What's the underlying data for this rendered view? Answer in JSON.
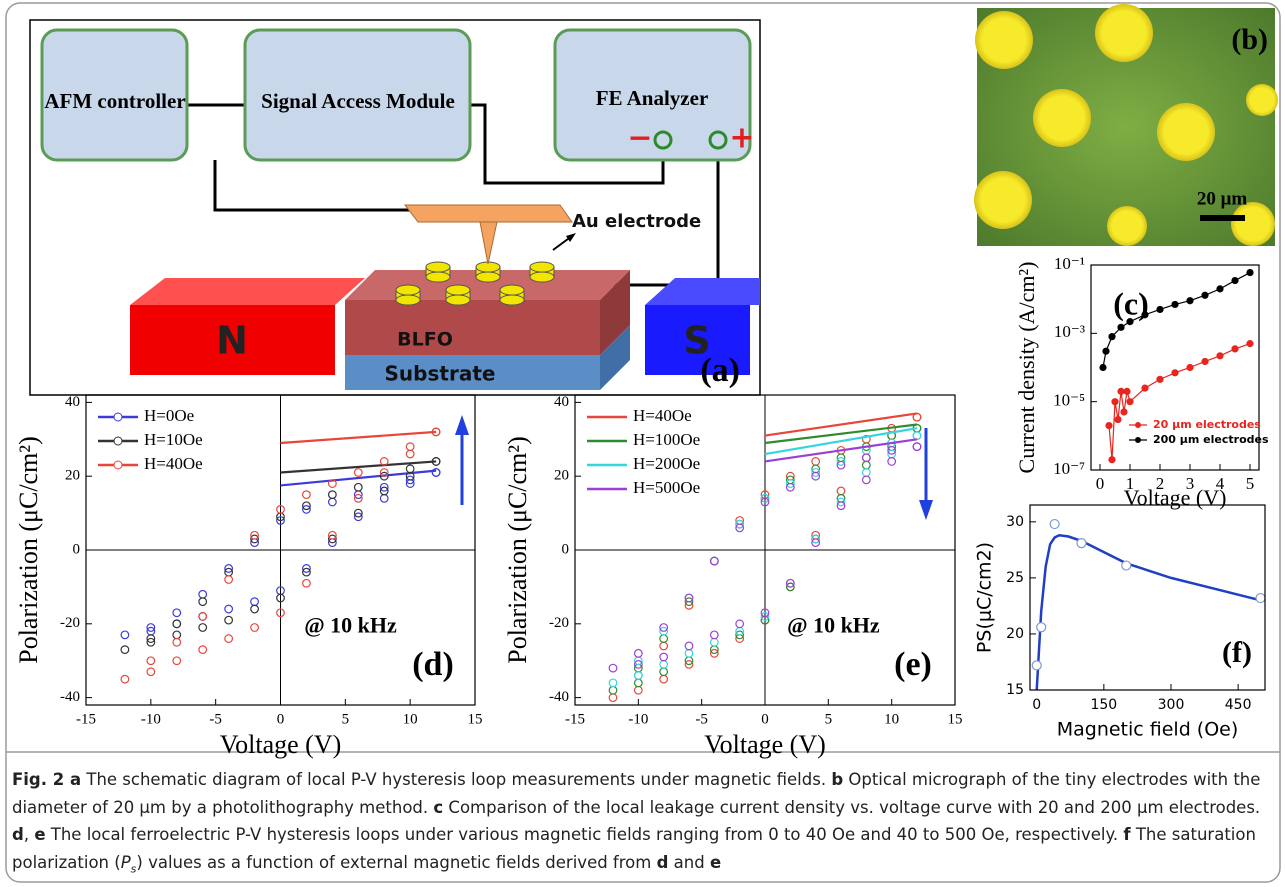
{
  "diagram": {
    "afm_controller": "AFM controller",
    "signal_module": "Signal Access Module",
    "fe_analyzer": "FE Analyzer",
    "minus": "−",
    "plus": "+",
    "au_electrode": "Au electrode",
    "north": "N",
    "south": "S",
    "blfo": "BLFO",
    "substrate": "Substrate",
    "panel_label": "(a)"
  },
  "micrograph": {
    "panel_label": "(b)",
    "scale_bar": "20 μm"
  },
  "chart_data": [
    {
      "type": "scatter",
      "panel_label": "(c)",
      "xlabel": "Voltage (V)",
      "ylabel": "Current density (A/cm²)",
      "xlim": [
        -0.3,
        5.3
      ],
      "xticks": [
        0,
        1,
        2,
        3,
        4,
        5
      ],
      "ylim": [
        1e-07,
        0.1
      ],
      "log_y": true,
      "yticks": [
        {
          "value": 1e-07,
          "label": "10⁻⁷"
        },
        {
          "value": 1e-05,
          "label": "10⁻⁵"
        },
        {
          "value": 0.001,
          "label": "10⁻³"
        },
        {
          "value": 0.1,
          "label": "10⁻¹"
        }
      ],
      "legend": "lower right",
      "series": [
        {
          "name": "20 μm electrodes",
          "color": "#e8251f",
          "marker": "filled",
          "line": true,
          "x": [
            0.3,
            0.4,
            0.5,
            0.6,
            0.7,
            0.8,
            0.9,
            1,
            1.5,
            2,
            2.5,
            3,
            3.5,
            4,
            4.5,
            5
          ],
          "values": [
            2e-06,
            2e-07,
            1e-05,
            3e-06,
            2e-05,
            5e-06,
            2e-05,
            1e-05,
            2.5e-05,
            4.5e-05,
            7e-05,
            0.0001,
            0.00015,
            0.00022,
            0.00035,
            0.0005
          ]
        },
        {
          "name": "200 μm electrodes",
          "color": "#000000",
          "marker": "filled",
          "line": true,
          "x": [
            0.1,
            0.2,
            0.4,
            0.7,
            1,
            1.5,
            2,
            2.5,
            3,
            3.5,
            4,
            4.5,
            5
          ],
          "values": [
            0.0001,
            0.0003,
            0.0008,
            0.0015,
            0.0022,
            0.0035,
            0.005,
            0.007,
            0.009,
            0.013,
            0.02,
            0.035,
            0.06
          ]
        }
      ]
    },
    {
      "type": "scatter",
      "panel_label": "(d)",
      "annotation": "@ 10 kHz",
      "xlabel": "Voltage (V)",
      "ylabel": "Polarization (μC/cm²)",
      "xlim": [
        -15,
        15
      ],
      "xticks": [
        -15,
        -10,
        -5,
        0,
        5,
        10,
        15
      ],
      "ylim": [
        -42,
        42
      ],
      "yticks": [
        -40,
        -20,
        0,
        20,
        40
      ],
      "zero_lines": true,
      "legend": "upper left",
      "series": [
        {
          "name": "H=0Oe",
          "color": "#3b3bdc",
          "marker": "open",
          "line": false,
          "x": [
            12,
            10,
            8,
            6,
            4,
            2,
            0,
            -2,
            -4,
            -6,
            -8,
            -10,
            -12,
            -10,
            -8,
            -6,
            -4,
            -2,
            0,
            2,
            4,
            6,
            8,
            10,
            12
          ],
          "values": [
            21,
            19,
            17,
            15,
            13,
            11,
            8,
            2,
            -5,
            -12,
            -17,
            -21,
            -23,
            -22,
            -20,
            -18,
            -16,
            -14,
            -11,
            -5,
            2,
            9,
            14,
            18,
            21
          ],
          "fit_x": [
            0,
            12
          ],
          "fit_values": [
            17.5,
            21.5
          ]
        },
        {
          "name": "H=10Oe",
          "color": "#333333",
          "marker": "open",
          "line": false,
          "x": [
            12,
            10,
            8,
            6,
            4,
            2,
            0,
            -2,
            -4,
            -6,
            -8,
            -10,
            -12,
            -10,
            -8,
            -6,
            -4,
            -2,
            0,
            2,
            4,
            6,
            8,
            10,
            12
          ],
          "values": [
            24,
            22,
            20,
            17,
            15,
            12,
            9,
            3,
            -6,
            -14,
            -20,
            -24,
            -27,
            -25,
            -23,
            -21,
            -19,
            -16,
            -13,
            -6,
            3,
            10,
            16,
            20,
            24
          ],
          "fit_x": [
            0,
            12
          ],
          "fit_values": [
            21,
            24
          ]
        },
        {
          "name": "H=40Oe",
          "color": "#e8463a",
          "marker": "open",
          "line": false,
          "x": [
            12,
            10,
            8,
            6,
            4,
            2,
            0,
            -2,
            -4,
            -6,
            -8,
            -10,
            -12,
            -10,
            -8,
            -6,
            -4,
            -2,
            0,
            2,
            4,
            6,
            8,
            10,
            12
          ],
          "values": [
            32,
            28,
            24,
            21,
            18,
            15,
            11,
            4,
            -8,
            -18,
            -25,
            -30,
            -35,
            -33,
            -30,
            -27,
            -24,
            -21,
            -17,
            -9,
            4,
            14,
            21,
            26,
            32
          ],
          "fit_x": [
            0,
            12
          ],
          "fit_values": [
            29,
            32
          ]
        }
      ]
    },
    {
      "type": "scatter",
      "panel_label": "(e)",
      "annotation": "@ 10 kHz",
      "xlabel": "Voltage (V)",
      "ylabel": "Polarization (μC/cm²)",
      "xlim": [
        -15,
        15
      ],
      "xticks": [
        -15,
        -10,
        -5,
        0,
        5,
        10,
        15
      ],
      "ylim": [
        -42,
        42
      ],
      "yticks": [
        -40,
        -20,
        0,
        20,
        40
      ],
      "zero_lines": true,
      "legend": "upper left",
      "series": [
        {
          "name": "H=40Oe",
          "color": "#e8463a",
          "marker": "open",
          "line": false,
          "legend_marker": false,
          "x": [
            12,
            10,
            8,
            6,
            4,
            2,
            0,
            -2,
            -4,
            -6,
            -8,
            -10,
            -12,
            -10,
            -8,
            -6,
            -4,
            -2,
            0,
            2,
            4,
            6,
            8,
            10,
            12
          ],
          "values": [
            36,
            33,
            30,
            27,
            24,
            20,
            15,
            8,
            -3,
            -15,
            -26,
            -34,
            -40,
            -38,
            -35,
            -31,
            -28,
            -24,
            -19,
            -10,
            4,
            16,
            25,
            31,
            36
          ],
          "fit_x": [
            0,
            12
          ],
          "fit_values": [
            31,
            37
          ]
        },
        {
          "name": "H=100Oe",
          "color": "#2e8b2e",
          "marker": "open",
          "line": false,
          "legend_marker": false,
          "x": [
            12,
            10,
            8,
            6,
            4,
            2,
            0,
            -2,
            -4,
            -6,
            -8,
            -10,
            -12,
            -10,
            -8,
            -6,
            -4,
            -2,
            0,
            2,
            4,
            6,
            8,
            10,
            12
          ],
          "values": [
            33,
            31,
            28,
            25,
            22,
            19,
            14,
            7,
            -3,
            -14,
            -24,
            -32,
            -38,
            -36,
            -33,
            -30,
            -27,
            -23,
            -19,
            -10,
            3,
            14,
            23,
            28,
            33
          ],
          "fit_x": [
            0,
            12
          ],
          "fit_values": [
            29,
            34
          ]
        },
        {
          "name": "H=200Oe",
          "color": "#33d6e0",
          "marker": "open",
          "line": false,
          "legend_marker": false,
          "x": [
            12,
            10,
            8,
            6,
            4,
            2,
            0,
            -2,
            -4,
            -6,
            -8,
            -10,
            -12,
            -10,
            -8,
            -6,
            -4,
            -2,
            0,
            2,
            4,
            6,
            8,
            10,
            12
          ],
          "values": [
            31,
            29,
            27,
            24,
            21,
            18,
            14,
            7,
            -3,
            -13,
            -22,
            -30,
            -36,
            -34,
            -31,
            -28,
            -25,
            -22,
            -18,
            -9,
            3,
            13,
            21,
            26,
            31
          ],
          "fit_x": [
            0,
            12
          ],
          "fit_values": [
            26,
            33
          ]
        },
        {
          "name": "H=500Oe",
          "color": "#9b3fd6",
          "marker": "open",
          "line": false,
          "legend_marker": false,
          "x": [
            12,
            10,
            8,
            6,
            4,
            2,
            0,
            -2,
            -4,
            -6,
            -8,
            -10,
            -12,
            -10,
            -8,
            -6,
            -4,
            -2,
            0,
            2,
            4,
            6,
            8,
            10,
            12
          ],
          "values": [
            28,
            27,
            25,
            23,
            20,
            17,
            13,
            6,
            -3,
            -13,
            -21,
            -28,
            -32,
            -31,
            -29,
            -26,
            -23,
            -20,
            -17,
            -9,
            2,
            12,
            19,
            24,
            28
          ],
          "fit_x": [
            0,
            12
          ],
          "fit_values": [
            24,
            30
          ]
        }
      ]
    },
    {
      "type": "scatter",
      "panel_label": "(f)",
      "xlabel": "Magnetic field (Oe)",
      "ylabel": "PS(μC/cm2)",
      "xlim": [
        -15,
        510
      ],
      "xticks": [
        0,
        150,
        300,
        450
      ],
      "ylim": [
        15,
        31.5
      ],
      "yticks": [
        15,
        20,
        25,
        30
      ],
      "series": [
        {
          "color": "#1f3fc4",
          "marker": false,
          "line": true,
          "x": [
            0,
            10,
            20,
            30,
            40,
            50,
            70,
            100,
            150,
            200,
            300,
            400,
            500
          ],
          "values": [
            15,
            22,
            26,
            28,
            28.6,
            28.8,
            28.7,
            28.3,
            27.3,
            26.3,
            25,
            24,
            23
          ]
        },
        {
          "color": "#7f97cf",
          "marker": "white",
          "line": false,
          "x": [
            0,
            10,
            40,
            100,
            200,
            500
          ],
          "values": [
            17.2,
            20.6,
            29.8,
            28.1,
            26.1,
            23.2
          ]
        }
      ]
    }
  ],
  "caption": [
    {
      "text": "Fig. 2 a",
      "style": "bold"
    },
    {
      "text": " The schematic diagram of local P-V hysteresis loop measurements under magnetic fields. ",
      "style": "plain"
    },
    {
      "text": "b",
      "style": "bold"
    },
    {
      "text": " Optical micrograph of the tiny electrodes with the diameter of 20 μm by a photolithography method. ",
      "style": "plain"
    },
    {
      "text": "c",
      "style": "bold"
    },
    {
      "text": " Comparison of the local leakage current density vs. voltage curve with 20 and 200 μm electrodes. ",
      "style": "plain"
    },
    {
      "text": "d",
      "style": "bold"
    },
    {
      "text": ", ",
      "style": "plain"
    },
    {
      "text": "e",
      "style": "bold"
    },
    {
      "text": " The local ferroelectric P-V hysteresis loops under various magnetic fields ranging from 0 to 40 Oe and 40 to 500 Oe, respectively. ",
      "style": "plain"
    },
    {
      "text": "f",
      "style": "bold"
    },
    {
      "text": " The saturation polarization (",
      "style": "plain"
    },
    {
      "text": "P",
      "style": "italic"
    },
    {
      "text": "s",
      "style": "sub"
    },
    {
      "text": ") values as a function of external magnetic fields derived from ",
      "style": "plain"
    },
    {
      "text": "d",
      "style": "bold"
    },
    {
      "text": " and ",
      "style": "plain"
    },
    {
      "text": "e",
      "style": "bold"
    }
  ]
}
